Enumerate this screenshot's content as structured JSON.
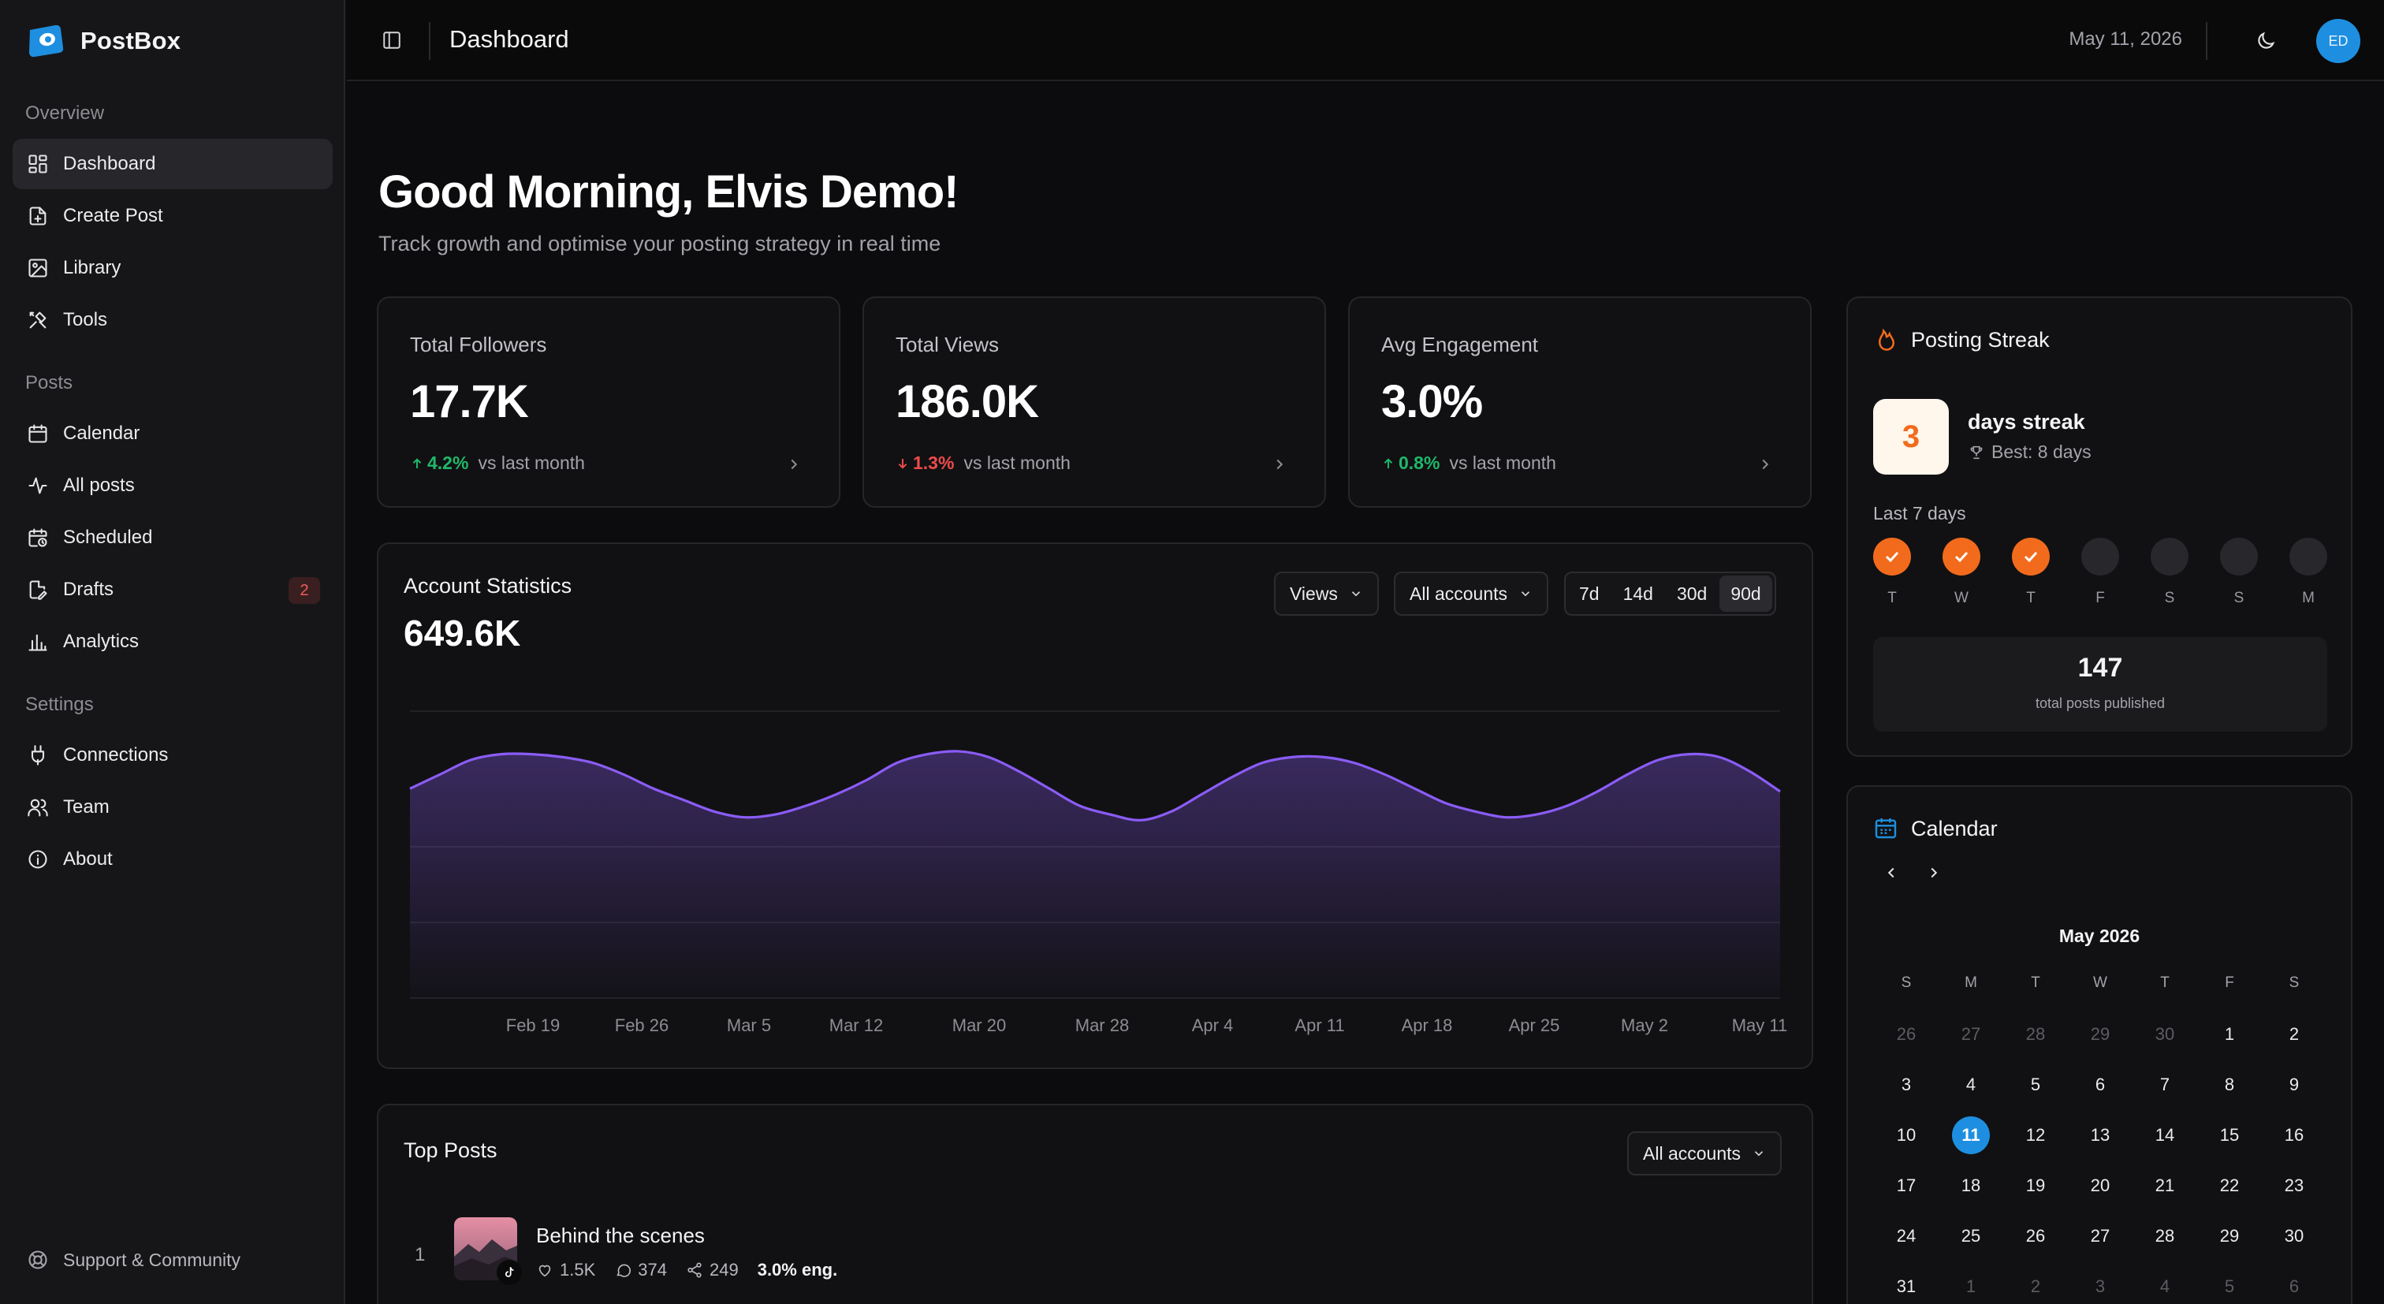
{
  "app": {
    "name": "PostBox"
  },
  "sidebar": {
    "sections": [
      {
        "label": "Overview",
        "items": [
          {
            "label": "Dashboard",
            "icon": "dashboard-icon",
            "active": true
          },
          {
            "label": "Create Post",
            "icon": "create-post-icon"
          },
          {
            "label": "Library",
            "icon": "image-icon"
          },
          {
            "label": "Tools",
            "icon": "tools-icon"
          }
        ]
      },
      {
        "label": "Posts",
        "items": [
          {
            "label": "Calendar",
            "icon": "calendar-icon"
          },
          {
            "label": "All posts",
            "icon": "activity-icon"
          },
          {
            "label": "Scheduled",
            "icon": "calendar-clock-icon"
          },
          {
            "label": "Drafts",
            "icon": "file-edit-icon",
            "badge": "2"
          },
          {
            "label": "Analytics",
            "icon": "bar-chart-icon"
          }
        ]
      },
      {
        "label": "Settings",
        "items": [
          {
            "label": "Connections",
            "icon": "plug-icon"
          },
          {
            "label": "Team",
            "icon": "users-icon"
          },
          {
            "label": "About",
            "icon": "info-icon"
          }
        ]
      }
    ],
    "support_label": "Support & Community"
  },
  "header": {
    "title": "Dashboard",
    "date": "May 11, 2026",
    "avatar_initials": "ED"
  },
  "main": {
    "greeting": "Good Morning, Elvis Demo!",
    "subtitle": "Track growth and optimise your posting strategy in real time"
  },
  "stats": [
    {
      "label": "Total Followers",
      "value": "17.7K",
      "delta": "4.2%",
      "direction": "up",
      "suffix": "vs last month"
    },
    {
      "label": "Total Views",
      "value": "186.0K",
      "delta": "1.3%",
      "direction": "down",
      "suffix": "vs last month"
    },
    {
      "label": "Avg Engagement",
      "value": "3.0%",
      "delta": "0.8%",
      "direction": "up",
      "suffix": "vs last month"
    }
  ],
  "account_stats": {
    "title": "Account Statistics",
    "value": "649.6K",
    "metric_dropdown": "Views",
    "account_dropdown": "All accounts",
    "ranges": [
      "7d",
      "14d",
      "30d",
      "90d"
    ],
    "active_range": "90d",
    "line_color": "#8b5cf6"
  },
  "chart_data": {
    "type": "area",
    "x_ticks": [
      "Feb 19",
      "Feb 26",
      "Mar 5",
      "Mar 12",
      "Mar 20",
      "Mar 28",
      "Apr 4",
      "Apr 11",
      "Apr 18",
      "Apr 25",
      "May 2",
      "May 11"
    ],
    "ylim": [
      0,
      1
    ],
    "values": [
      0.73,
      0.78,
      0.83,
      0.85,
      0.85,
      0.84,
      0.82,
      0.78,
      0.73,
      0.69,
      0.65,
      0.63,
      0.64,
      0.67,
      0.71,
      0.76,
      0.82,
      0.85,
      0.86,
      0.84,
      0.79,
      0.73,
      0.67,
      0.64,
      0.62,
      0.65,
      0.71,
      0.77,
      0.82,
      0.84,
      0.84,
      0.82,
      0.78,
      0.73,
      0.68,
      0.65,
      0.63,
      0.64,
      0.67,
      0.72,
      0.78,
      0.83,
      0.85,
      0.84,
      0.79,
      0.72
    ],
    "grid": true,
    "legend": "none"
  },
  "streak": {
    "title": "Posting Streak",
    "count": "3",
    "days_label": "days streak",
    "best": "Best: 8 days",
    "last7_label": "Last 7 days",
    "days": [
      {
        "label": "T",
        "done": true
      },
      {
        "label": "W",
        "done": true
      },
      {
        "label": "T",
        "done": true
      },
      {
        "label": "F",
        "done": false
      },
      {
        "label": "S",
        "done": false
      },
      {
        "label": "S",
        "done": false
      },
      {
        "label": "M",
        "done": false
      }
    ],
    "total": "147",
    "total_label": "total posts published",
    "accent": "#f26b1d"
  },
  "calendar": {
    "title": "Calendar",
    "month": "May 2026",
    "weekdays": [
      "S",
      "M",
      "T",
      "W",
      "T",
      "F",
      "S"
    ],
    "weeks": [
      [
        "26",
        "27",
        "28",
        "29",
        "30",
        "1",
        "2"
      ],
      [
        "3",
        "4",
        "5",
        "6",
        "7",
        "8",
        "9"
      ],
      [
        "10",
        "11",
        "12",
        "13",
        "14",
        "15",
        "16"
      ],
      [
        "17",
        "18",
        "19",
        "20",
        "21",
        "22",
        "23"
      ],
      [
        "24",
        "25",
        "26",
        "27",
        "28",
        "29",
        "30"
      ],
      [
        "31",
        "1",
        "2",
        "3",
        "4",
        "5",
        "6"
      ]
    ],
    "today": "11",
    "accent": "#1e8fe0"
  },
  "top_posts": {
    "title": "Top Posts",
    "account_dropdown": "All accounts",
    "posts": [
      {
        "rank": "1",
        "title": "Behind the scenes",
        "likes": "1.5K",
        "comments": "374",
        "shares": "249",
        "engagement": "3.0% eng.",
        "platform": "tiktok-icon"
      }
    ]
  }
}
